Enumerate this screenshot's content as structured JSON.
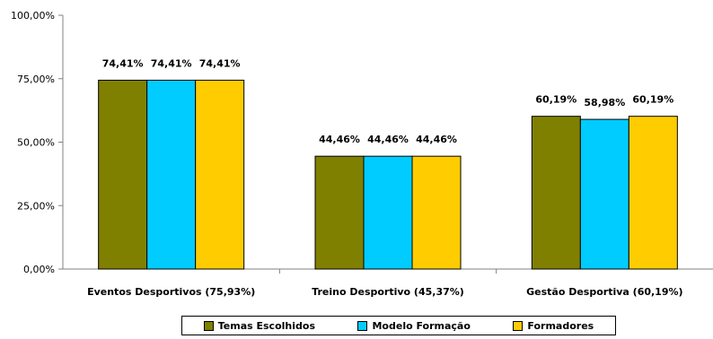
{
  "chart_data": {
    "type": "bar",
    "categories": [
      "Eventos Desportivos (75,93%)",
      "Treino Desportivo (45,37%)",
      "Gestão Desportiva (60,19%)"
    ],
    "series": [
      {
        "name": "Temas Escolhidos",
        "values": [
          74.41,
          44.46,
          60.19
        ],
        "labels": [
          "74,41%",
          "44,46%",
          "60,19%"
        ],
        "color": "#808000"
      },
      {
        "name": "Modelo Formação",
        "values": [
          74.41,
          44.46,
          58.98
        ],
        "labels": [
          "74,41%",
          "44,46%",
          "58,98%"
        ],
        "color": "#00CCFF"
      },
      {
        "name": "Formadores",
        "values": [
          74.41,
          44.46,
          60.19
        ],
        "labels": [
          "74,41%",
          "44,46%",
          "60,19%"
        ],
        "color": "#FFCC00"
      }
    ],
    "yticks": [
      0,
      25,
      50,
      75,
      100
    ],
    "ytick_labels": [
      "0,00%",
      "25,00%",
      "50,00%",
      "75,00%",
      "100,00%"
    ],
    "ylim": [
      0,
      100
    ],
    "title": "",
    "xlabel": "",
    "ylabel": "",
    "grid": false,
    "legend": "bottom"
  }
}
